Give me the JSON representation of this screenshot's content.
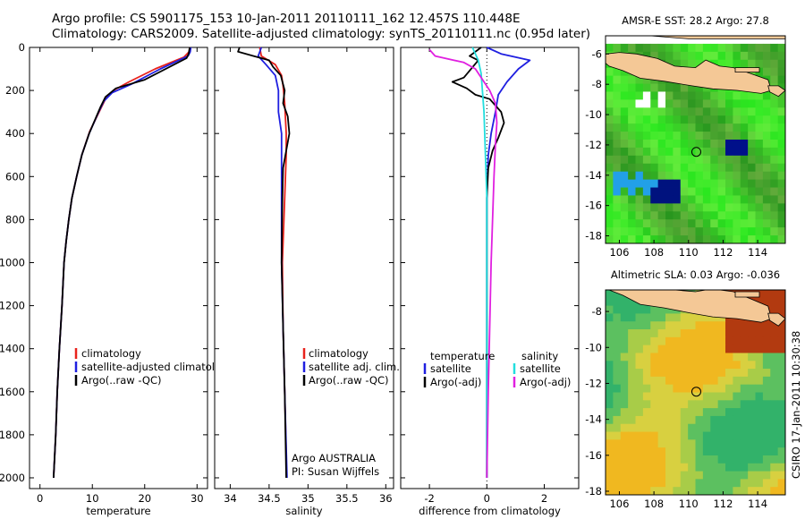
{
  "title": {
    "line1": "Argo profile: CS 5901175_153 10-Jan-2011 20110111_162 12.457S 110.448E",
    "line2": "Climatology: CARS2009. Satellite-adjusted climatology: synTS_20110111.nc (0.95d later)"
  },
  "credit": "CSIRO 17-Jan-2011 10:30:38",
  "colors": {
    "red": "#e8221c",
    "blue": "#1f1fe0",
    "black": "#000000",
    "cyan": "#22dede",
    "magenta": "#e020e0"
  },
  "chart_data": [
    {
      "id": "temperature",
      "type": "line",
      "xlabel": "temperature",
      "xlim": [
        -2,
        32
      ],
      "ylim": [
        2050,
        0
      ],
      "xticks": [
        "0",
        "10",
        "20",
        "30"
      ],
      "xtick_values": [
        0,
        10,
        20,
        30
      ],
      "yticks": [
        "0",
        "200",
        "400",
        "600",
        "800",
        "1000",
        "1200",
        "1400",
        "1600",
        "1800",
        "2000"
      ],
      "ytick_values": [
        0,
        200,
        400,
        600,
        800,
        1000,
        1200,
        1400,
        1600,
        1800,
        2000
      ],
      "legend": [
        "climatology",
        "satellite-adjusted climatology",
        "Argo(..raw -QC)"
      ],
      "series": [
        {
          "name": "climatology",
          "color": "red",
          "points": [
            [
              28.6,
              0
            ],
            [
              28.5,
              20
            ],
            [
              27.5,
              45
            ],
            [
              22,
              100
            ],
            [
              17,
              160
            ],
            [
              14,
              200
            ],
            [
              12.5,
              240
            ],
            [
              11.5,
              290
            ],
            [
              9.5,
              390
            ],
            [
              8,
              500
            ],
            [
              7,
              600
            ],
            [
              6.1,
              700
            ],
            [
              5.5,
              800
            ],
            [
              5,
              900
            ],
            [
              4.6,
              1000
            ],
            [
              4.2,
              1200
            ],
            [
              3.7,
              1400
            ],
            [
              3.3,
              1600
            ],
            [
              3,
              1800
            ],
            [
              2.6,
              2000
            ]
          ]
        },
        {
          "name": "satellite-adjusted climatology",
          "color": "blue",
          "points": [
            [
              28.8,
              0
            ],
            [
              28.7,
              20
            ],
            [
              28.3,
              40
            ],
            [
              23,
              100
            ],
            [
              17.5,
              170
            ],
            [
              13.8,
              210
            ],
            [
              12.2,
              250
            ],
            [
              11.2,
              300
            ],
            [
              9.4,
              400
            ],
            [
              8,
              500
            ],
            [
              7,
              600
            ],
            [
              6.1,
              700
            ],
            [
              5.5,
              800
            ],
            [
              5,
              900
            ],
            [
              4.6,
              1000
            ],
            [
              4.2,
              1200
            ],
            [
              3.7,
              1400
            ],
            [
              3.3,
              1600
            ],
            [
              3,
              1800
            ],
            [
              2.6,
              2000
            ]
          ]
        },
        {
          "name": "Argo(..raw -QC)",
          "color": "black",
          "points": [
            [
              28.6,
              0
            ],
            [
              28.4,
              30
            ],
            [
              28,
              50
            ],
            [
              20,
              150
            ],
            [
              14.5,
              190
            ],
            [
              12.5,
              230
            ],
            [
              11.5,
              280
            ],
            [
              9.4,
              400
            ],
            [
              8,
              500
            ],
            [
              7,
              600
            ],
            [
              6.1,
              700
            ],
            [
              5.5,
              800
            ],
            [
              5,
              900
            ],
            [
              4.6,
              1000
            ],
            [
              4.2,
              1200
            ],
            [
              3.7,
              1400
            ],
            [
              3.3,
              1600
            ],
            [
              3,
              1800
            ],
            [
              2.6,
              2000
            ]
          ]
        }
      ]
    },
    {
      "id": "salinity",
      "type": "line",
      "xlabel": "salinity",
      "xlim": [
        33.8,
        36.1
      ],
      "ylim": [
        2050,
        0
      ],
      "xticks": [
        "34",
        "34.5",
        "35",
        "35.5",
        "36"
      ],
      "xtick_values": [
        34,
        34.5,
        35,
        35.5,
        36
      ],
      "legend": [
        "climatology",
        "satellite adj. clim.",
        "Argo(..raw -QC)"
      ],
      "annotation": [
        "Argo AUSTRALIA",
        "PI: Susan Wijffels"
      ],
      "series": [
        {
          "name": "climatology",
          "color": "red",
          "points": [
            [
              34.38,
              0
            ],
            [
              34.4,
              40
            ],
            [
              34.58,
              80
            ],
            [
              34.66,
              130
            ],
            [
              34.68,
              180
            ],
            [
              34.7,
              260
            ],
            [
              34.72,
              400
            ],
            [
              34.72,
              500
            ],
            [
              34.7,
              700
            ],
            [
              34.67,
              1000
            ],
            [
              34.68,
              1300
            ],
            [
              34.7,
              1600
            ],
            [
              34.72,
              1900
            ]
          ]
        },
        {
          "name": "satellite adj. clim.",
          "color": "blue",
          "points": [
            [
              34.4,
              0
            ],
            [
              34.36,
              40
            ],
            [
              34.46,
              80
            ],
            [
              34.58,
              130
            ],
            [
              34.62,
              200
            ],
            [
              34.62,
              300
            ],
            [
              34.66,
              400
            ],
            [
              34.66,
              500
            ],
            [
              34.66,
              700
            ],
            [
              34.66,
              1000
            ],
            [
              34.68,
              1300
            ],
            [
              34.7,
              1600
            ],
            [
              34.73,
              2000
            ]
          ]
        },
        {
          "name": "Argo(..raw -QC)",
          "color": "black",
          "points": [
            [
              34.12,
              0
            ],
            [
              34.1,
              20
            ],
            [
              34.3,
              40
            ],
            [
              34.5,
              60
            ],
            [
              34.55,
              90
            ],
            [
              34.65,
              130
            ],
            [
              34.7,
              200
            ],
            [
              34.68,
              260
            ],
            [
              34.74,
              320
            ],
            [
              34.76,
              400
            ],
            [
              34.72,
              480
            ],
            [
              34.68,
              560
            ],
            [
              34.67,
              700
            ],
            [
              34.66,
              1000
            ],
            [
              34.68,
              1300
            ],
            [
              34.7,
              1600
            ],
            [
              34.72,
              2000
            ]
          ]
        }
      ]
    },
    {
      "id": "difference",
      "type": "line",
      "xlabel": "difference from climatology",
      "xlim": [
        -3,
        3.2
      ],
      "ylim": [
        2050,
        0
      ],
      "xticks": [
        "-2",
        "0",
        "2"
      ],
      "xtick_values": [
        -2,
        0,
        2
      ],
      "legend_left_title": "temperature",
      "legend_left": [
        "satellite",
        "Argo(-adj)"
      ],
      "legend_right_title": "salinity",
      "legend_right": [
        "satellite",
        "Argo(-adj)"
      ],
      "series": [
        {
          "name": "temperature satellite",
          "color": "blue",
          "points": [
            [
              0,
              0
            ],
            [
              0.5,
              30
            ],
            [
              1.5,
              60
            ],
            [
              1.1,
              100
            ],
            [
              0.7,
              160
            ],
            [
              0.4,
              220
            ],
            [
              0.3,
              300
            ],
            [
              0.15,
              400
            ],
            [
              0.05,
              500
            ],
            [
              0,
              700
            ],
            [
              0,
              1000
            ],
            [
              0,
              1500
            ],
            [
              0,
              2000
            ]
          ]
        },
        {
          "name": "temperature Argo(-adj)",
          "color": "black",
          "points": [
            [
              -0.2,
              0
            ],
            [
              -0.6,
              40
            ],
            [
              -0.3,
              60
            ],
            [
              -0.8,
              140
            ],
            [
              -1.2,
              160
            ],
            [
              -0.7,
              190
            ],
            [
              -0.4,
              220
            ],
            [
              0.1,
              240
            ],
            [
              0.3,
              270
            ],
            [
              0.5,
              300
            ],
            [
              0.6,
              350
            ],
            [
              0.4,
              420
            ],
            [
              0.2,
              480
            ],
            [
              0.05,
              560
            ],
            [
              0,
              700
            ],
            [
              0,
              1000
            ],
            [
              0,
              1500
            ],
            [
              0,
              2000
            ]
          ]
        },
        {
          "name": "salinity satellite",
          "color": "cyan",
          "points": [
            [
              -0.5,
              0
            ],
            [
              -0.3,
              60
            ],
            [
              -0.2,
              120
            ],
            [
              -0.1,
              300
            ],
            [
              -0.05,
              500
            ],
            [
              0,
              700
            ],
            [
              0,
              1000
            ],
            [
              0,
              1500
            ],
            [
              0,
              2000
            ]
          ]
        },
        {
          "name": "salinity Argo(-adj)",
          "color": "magenta",
          "points": [
            [
              -2,
              10
            ],
            [
              -1.8,
              40
            ],
            [
              -0.8,
              70
            ],
            [
              -0.4,
              100
            ],
            [
              0.1,
              200
            ],
            [
              0.3,
              260
            ],
            [
              0.35,
              350
            ],
            [
              0.3,
              450
            ],
            [
              0.25,
              600
            ],
            [
              0.2,
              800
            ],
            [
              0.15,
              1000
            ],
            [
              0.1,
              1300
            ],
            [
              0.05,
              1600
            ],
            [
              0,
              2000
            ]
          ]
        }
      ]
    },
    {
      "id": "sst-map",
      "type": "heatmap",
      "title": "AMSR-E SST: 28.2 Argo: 27.8",
      "xlim": [
        105.2,
        115.6
      ],
      "ylim": [
        -18.5,
        -4.8
      ],
      "xticks": [
        "106",
        "108",
        "110",
        "112",
        "114"
      ],
      "xtick_values": [
        106,
        108,
        110,
        112,
        114
      ],
      "yticks": [
        "-6",
        "-8",
        "-10",
        "-12",
        "-14",
        "-16",
        "-18"
      ],
      "ytick_values": [
        -6,
        -8,
        -10,
        -12,
        -14,
        -16,
        -18
      ],
      "marker": [
        110.45,
        -12.46
      ]
    },
    {
      "id": "sla-map",
      "type": "heatmap",
      "title": "Altimetric SLA: 0.03 Argo: -0.036",
      "xlim": [
        105.2,
        115.6
      ],
      "ylim": [
        -18.2,
        -6.8
      ],
      "xticks": [
        "106",
        "108",
        "110",
        "112",
        "114"
      ],
      "xtick_values": [
        106,
        108,
        110,
        112,
        114
      ],
      "yticks": [
        "-8",
        "-10",
        "-12",
        "-14",
        "-16",
        "-18"
      ],
      "ytick_values": [
        -8,
        -10,
        -12,
        -14,
        -16,
        -18
      ],
      "marker": [
        110.45,
        -12.46
      ]
    }
  ]
}
